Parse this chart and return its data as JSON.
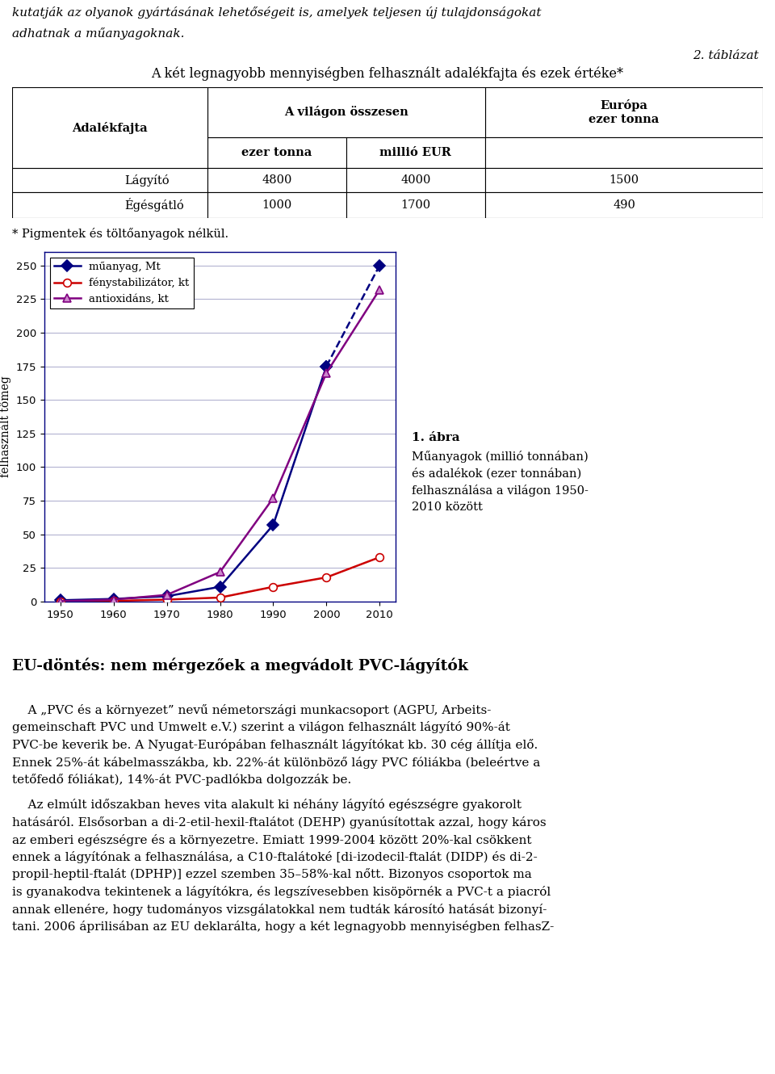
{
  "fig_width": 9.6,
  "fig_height": 13.3,
  "italic_lines": [
    "kutatják az olyanok gyártásának lehetőségeit is, amelyek teljesen új tulajdonságokat",
    "adhatnak a műanyagoknak."
  ],
  "tablazat_label": "2. táblázat",
  "table_title": "A két legnagyobb mennyiségben felhasznált adalékfajta és ezek értéke*",
  "note_text": "* Pigmentek és töltőanyagok nélkül.",
  "ylabel": "felhasznált tömeg",
  "xlim": [
    1947,
    2013
  ],
  "ylim": [
    0,
    260
  ],
  "yticks": [
    0,
    25,
    50,
    75,
    100,
    125,
    150,
    175,
    200,
    225,
    250
  ],
  "xticks": [
    1950,
    1960,
    1970,
    1980,
    1990,
    2000,
    2010
  ],
  "series": [
    {
      "name": "műanyag, Mt",
      "color": "#000080",
      "marker": "D",
      "marker_face": "#000080",
      "x": [
        1950,
        1960,
        1970,
        1980,
        1990,
        2000,
        2010
      ],
      "y": [
        1,
        2,
        4,
        11,
        57,
        175,
        250
      ],
      "dashed_last": true
    },
    {
      "name": "fénystabilizátor, kt",
      "color": "#CC0000",
      "marker": "o",
      "marker_face": "#FFFFFF",
      "x": [
        1950,
        1960,
        1970,
        1980,
        1990,
        2000,
        2010
      ],
      "y": [
        0.2,
        0.5,
        1.5,
        3,
        11,
        18,
        33
      ],
      "dashed_last": false
    },
    {
      "name": "antioxidáns, kt",
      "color": "#800080",
      "marker": "^",
      "marker_face": "#CC88CC",
      "x": [
        1950,
        1960,
        1970,
        1980,
        1990,
        2000,
        2010
      ],
      "y": [
        0.3,
        1.5,
        5,
        22,
        77,
        170,
        232
      ],
      "dashed_last": false
    }
  ],
  "caption_title": "1. ábra",
  "caption_body": "Műanyagok (millió tonnában)\nés adalékok (ezer tonnában)\nfelhasználása a világon 1950-\n2010 között",
  "eu_heading": "EU-döntés: nem mérgezőek a megvádolt PVC-lágyítók",
  "p1_lines": [
    "    A „PVC és a környezet” nevű németországi munkacsoport (AGPU, Arbeits-",
    "gemeinschaft PVC und Umwelt e.V.) szerint a világon felhasznált lágyító 90%-át",
    "PVC-be keverik be. A Nyugat-Európában felhasznált lágyítókat kb. 30 cég állítja elő.",
    "Ennek 25%-át kábelmasszákba, kb. 22%-át különböző lágy PVC fóliákba (beleértve a",
    "tetőfedő fóliákat), 14%-át PVC-padlókba dolgozzák be."
  ],
  "p2_lines": [
    "    Az elmúlt időszakban heves vita alakult ki néhány lágyító egészségre gyakorolt",
    "hatásáról. Elsősorban a di-2-etil-hexil-ftalátot (DEHP) gyanúsítottak azzal, hogy káros",
    "az emberi egészségre és a környezetre. Emiatt 1999-2004 között 20%-kal csökkent",
    "ennek a lágyítónak a felhasználása, a C10-ftalátoké [di-izodecil-ftalát (DIDP) és di-2-",
    "propil-heptil-ftalát (DPHP)] ezzel szemben 35–58%-kal nőtt. Bizonyos csoportok ma",
    "is gyanakodva tekintenek a lágyítókra, és legszívesebben kisöpörnék a PVC-t a piacról",
    "annak ellenére, hogy tudományos vizsgálatokkal nem tudták károsító hatását bizonyí-",
    "tani. 2006 áprilisában az EU deklarálta, hogy a két legnagyobb mennyiségben felhasZ-"
  ]
}
